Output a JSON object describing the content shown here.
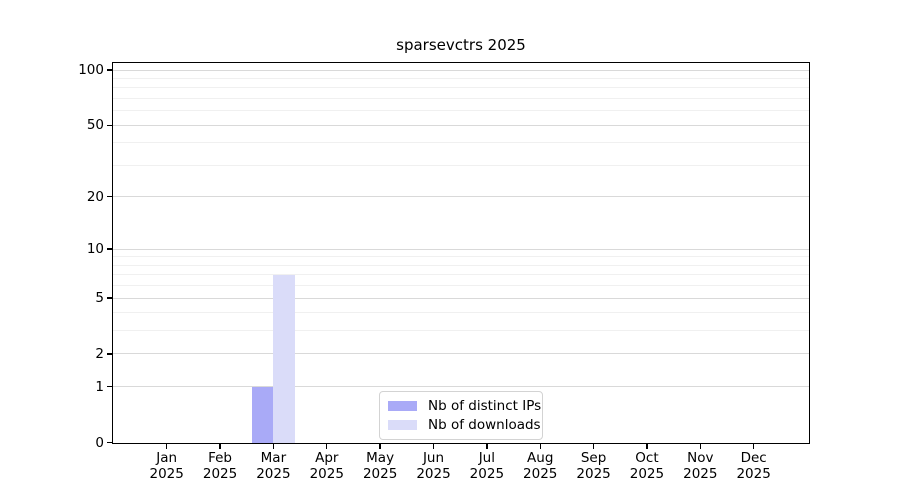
{
  "chart_data": {
    "type": "bar",
    "title": "sparsevctrs 2025",
    "categories": [
      "Jan",
      "Feb",
      "Mar",
      "Apr",
      "May",
      "Jun",
      "Jul",
      "Aug",
      "Sep",
      "Oct",
      "Nov",
      "Dec"
    ],
    "x_year_line": "2025",
    "series": [
      {
        "name": "Nb of distinct IPs",
        "color": "#a9aaf7",
        "values": [
          0,
          0,
          1,
          0,
          0,
          0,
          0,
          0,
          0,
          0,
          0,
          0
        ]
      },
      {
        "name": "Nb of downloads",
        "color": "#dadcf9",
        "values": [
          0,
          0,
          7,
          0,
          0,
          0,
          0,
          0,
          0,
          0,
          0,
          0
        ]
      }
    ],
    "yscale": "log1p",
    "yticks": [
      0,
      1,
      2,
      5,
      10,
      20,
      50,
      100
    ],
    "yticks_minor": [
      3,
      4,
      6,
      7,
      8,
      9,
      30,
      40,
      60,
      70,
      80,
      90
    ],
    "ylim": [
      0,
      111
    ],
    "xlabel": "",
    "ylabel": "",
    "grid": true,
    "legend_position": "lower center"
  },
  "colors": {
    "background": "#ffffff",
    "axis": "#000000",
    "grid_major": "#d9d9d9",
    "grid_minor": "#f0f0f0",
    "legend_border": "#d3d3d3",
    "bar_distinct_ips": "#a9aaf7",
    "bar_downloads": "#dadcf9"
  }
}
